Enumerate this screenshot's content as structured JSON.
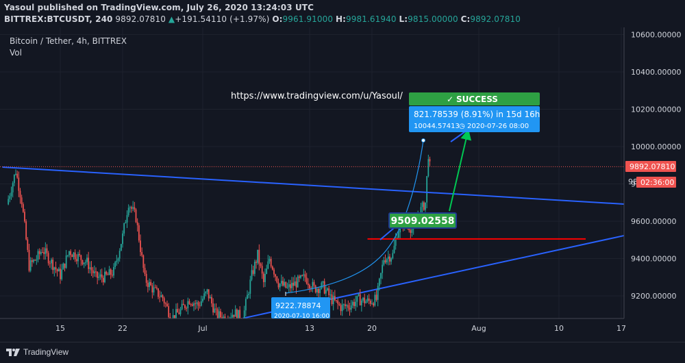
{
  "header": {
    "publish_line": "Yasoul published on TradingView.com, July 26, 2020 13:24:03 UTC",
    "symbol": "BITTREX:BTCUSDT, 240",
    "last_price": "9892.07810",
    "change_arrow": "▲",
    "change": "+191.54110 (+1.97%)",
    "o_label": "O:",
    "open": "9961.91000",
    "h_label": "H:",
    "high": "9981.61940",
    "l_label": "L:",
    "low": "9815.00000",
    "c_label": "C:",
    "close": "9892.07810"
  },
  "legend": {
    "title": "Bitcoin / Tether, 4h, BITTREX",
    "volume": "Vol"
  },
  "annotations": {
    "url": "https://www.tradingview.com/u/Yasoul/",
    "success": "SUCCESS",
    "success_check": "✓",
    "measure_line1": "821.78539 (8.91%) in 15d 16h",
    "measure_price": "10044.57413",
    "measure_clock": "◷",
    "measure_date": "2020-07-26  08:00",
    "entry_price": "9509.02558",
    "start_price": "9222.78874",
    "start_date": "2020-07-10 16:00"
  },
  "price_axis": {
    "current_price": "9892.07810",
    "countdown": "02:36:00",
    "partial_label": "98"
  },
  "footer": {
    "brand": "TradingView"
  },
  "colors": {
    "background": "#131722",
    "up": "#26a69a",
    "down": "#ef5350",
    "trendline": "#2962ff",
    "level": "#ff0000",
    "success": "#2ea043",
    "measure": "#2196f3",
    "arrow": "#00c853"
  },
  "chart_data": {
    "type": "candlestick",
    "title": "Bitcoin / Tether, 4h, BITTREX",
    "interval": "4h",
    "ylim": [
      9140,
      10690
    ],
    "y_ticks": [
      9200,
      9400,
      9600,
      9800,
      10000,
      10200,
      10400,
      10600
    ],
    "x_ticks": [
      {
        "label": "15",
        "date": "2020-06-15"
      },
      {
        "label": "22",
        "date": "2020-06-22"
      },
      {
        "label": "Jul",
        "date": "2020-07-01"
      },
      {
        "label": "13",
        "date": "2020-07-13"
      },
      {
        "label": "20",
        "date": "2020-07-20"
      },
      {
        "label": "Aug",
        "date": "2020-08-01"
      },
      {
        "label": "10",
        "date": "2020-08-10"
      },
      {
        "label": "17",
        "date": "2020-08-17"
      }
    ],
    "waypoints": [
      [
        "2020-06-09 00:00",
        9690
      ],
      [
        "2020-06-10 00:00",
        9870
      ],
      [
        "2020-06-10 16:00",
        9710
      ],
      [
        "2020-06-11 12:00",
        9360
      ],
      [
        "2020-06-12 08:00",
        9400
      ],
      [
        "2020-06-13 00:00",
        9450
      ],
      [
        "2020-06-14 00:00",
        9380
      ],
      [
        "2020-06-15 00:00",
        9310
      ],
      [
        "2020-06-16 00:00",
        9440
      ],
      [
        "2020-06-17 00:00",
        9410
      ],
      [
        "2020-06-18 00:00",
        9380
      ],
      [
        "2020-06-19 00:00",
        9300
      ],
      [
        "2020-06-20 00:00",
        9300
      ],
      [
        "2020-06-21 00:00",
        9330
      ],
      [
        "2020-06-22 00:00",
        9520
      ],
      [
        "2020-06-22 16:00",
        9700
      ],
      [
        "2020-06-23 12:00",
        9620
      ],
      [
        "2020-06-24 12:00",
        9290
      ],
      [
        "2020-06-25 12:00",
        9230
      ],
      [
        "2020-06-26 12:00",
        9190
      ],
      [
        "2020-06-27 12:00",
        9080
      ],
      [
        "2020-06-28 12:00",
        9120
      ],
      [
        "2020-06-29 12:00",
        9180
      ],
      [
        "2020-06-30 12:00",
        9150
      ],
      [
        "2020-07-01 12:00",
        9220
      ],
      [
        "2020-07-02 12:00",
        9100
      ],
      [
        "2020-07-03 12:00",
        9080
      ],
      [
        "2020-07-04 12:00",
        9110
      ],
      [
        "2020-07-05 12:00",
        9080
      ],
      [
        "2020-07-06 12:00",
        9310
      ],
      [
        "2020-07-07 04:00",
        9420
      ],
      [
        "2020-07-07 20:00",
        9270
      ],
      [
        "2020-07-08 12:00",
        9400
      ],
      [
        "2020-07-09 12:00",
        9270
      ],
      [
        "2020-07-10 12:00",
        9240
      ],
      [
        "2020-07-11 12:00",
        9270
      ],
      [
        "2020-07-12 12:00",
        9300
      ],
      [
        "2020-07-13 12:00",
        9240
      ],
      [
        "2020-07-14 12:00",
        9250
      ],
      [
        "2020-07-15 12:00",
        9180
      ],
      [
        "2020-07-16 12:00",
        9140
      ],
      [
        "2020-07-17 12:00",
        9150
      ],
      [
        "2020-07-18 12:00",
        9180
      ],
      [
        "2020-07-19 12:00",
        9170
      ],
      [
        "2020-07-20 12:00",
        9180
      ],
      [
        "2020-07-21 08:00",
        9400
      ],
      [
        "2020-07-22 08:00",
        9420
      ],
      [
        "2020-07-22 20:00",
        9540
      ],
      [
        "2020-07-23 12:00",
        9600
      ],
      [
        "2020-07-24 12:00",
        9560
      ],
      [
        "2020-07-25 12:00",
        9660
      ],
      [
        "2020-07-26 00:00",
        9700
      ],
      [
        "2020-07-26 08:00",
        9960
      ],
      [
        "2020-07-26 12:00",
        9892.08
      ]
    ],
    "lines": [
      {
        "name": "upper trendline",
        "points": [
          [
            "2020-06-08 12:00",
            9890
          ],
          [
            "2020-08-18 00:00",
            9690
          ]
        ]
      },
      {
        "name": "lower trendline",
        "points": [
          [
            "2020-07-05 12:00",
            9080
          ],
          [
            "2020-08-18 00:00",
            9530
          ]
        ]
      },
      {
        "name": "horizontal level",
        "points": [
          [
            "2020-07-19 12:00",
            9505
          ],
          [
            "2020-08-13 00:00",
            9505
          ]
        ]
      }
    ],
    "current_price": 9892.0781
  }
}
